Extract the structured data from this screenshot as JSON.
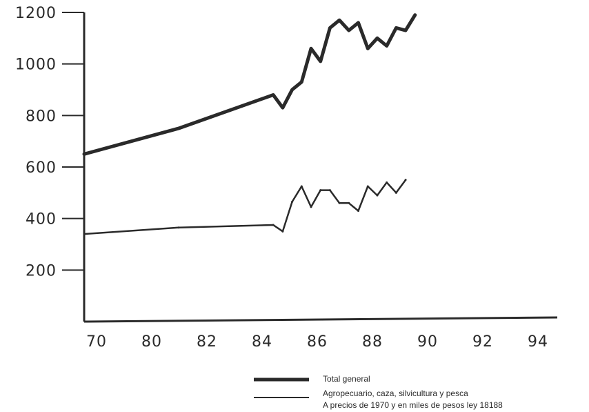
{
  "chart_data": {
    "type": "line",
    "title": "",
    "xlabel": "",
    "ylabel": "",
    "x_tick_labels": [
      "70",
      "80",
      "82",
      "84",
      "86",
      "88",
      "90",
      "92",
      "94"
    ],
    "y_ticks": [
      200,
      400,
      600,
      800,
      1000,
      1200
    ],
    "y_tick_labels": [
      "200",
      "400",
      "600",
      "800",
      "1000",
      "1200"
    ],
    "ylim": [
      0,
      1200
    ],
    "grid": false,
    "legend_position": "bottom-right",
    "x": [
      70,
      75,
      80,
      80.5,
      81,
      81.5,
      82,
      82.5,
      83,
      83.5,
      84,
      84.5,
      85,
      85.5,
      86,
      86.5,
      87,
      87.5,
      88,
      88.5,
      89,
      89.5,
      90,
      90.5,
      91,
      91.5,
      92,
      92.5
    ],
    "series": [
      {
        "name": "Total general",
        "color": "#2a2a2a",
        "values": [
          650,
          750,
          880,
          830,
          900,
          930,
          1060,
          1010,
          1140,
          1170,
          1130,
          1160,
          1060,
          1100,
          1070,
          1140,
          1130,
          1190,
          null,
          null,
          null,
          null,
          null,
          null,
          null,
          null,
          null,
          null
        ]
      },
      {
        "name": "Agropecuario, caza, silvicultura y pesca",
        "color": "#2a2a2a",
        "values": [
          340,
          365,
          375,
          350,
          465,
          525,
          445,
          510,
          510,
          460,
          460,
          430,
          525,
          490,
          540,
          500,
          550,
          null,
          null,
          null,
          null,
          null,
          null,
          null,
          null,
          null,
          null,
          null
        ]
      }
    ],
    "note": "A precios de 1970 y en miles de pesos ley 18188"
  }
}
